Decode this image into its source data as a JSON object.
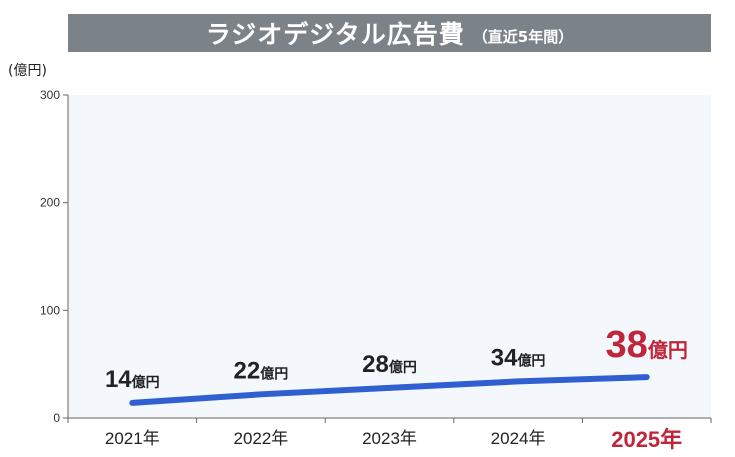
{
  "title": {
    "main": "ラジオデジタル広告費",
    "sub": "（直近5年間）"
  },
  "colors": {
    "title_bar": "#7c8388",
    "plot_bg": "#f4f8fc",
    "line": "#2f5fd0",
    "highlight": "#c0263a"
  },
  "chart_data": {
    "type": "line",
    "title": "ラジオデジタル広告費（直近5年間）",
    "ylabel": "(億円)",
    "xlabel": "",
    "ylim": [
      0,
      300
    ],
    "yticks": [
      "0",
      "100",
      "200",
      "300"
    ],
    "ytick_values": [
      0,
      100,
      200,
      300
    ],
    "categories": [
      "2021年",
      "2022年",
      "2023年",
      "2024年",
      "2025年"
    ],
    "series": [
      {
        "values": [
          14,
          22,
          28,
          34,
          38
        ],
        "labels": [
          "14",
          "22",
          "28",
          "34",
          "38"
        ]
      }
    ],
    "value_unit": "億円",
    "highlight_index": 4,
    "grid": false,
    "legend": "none"
  }
}
